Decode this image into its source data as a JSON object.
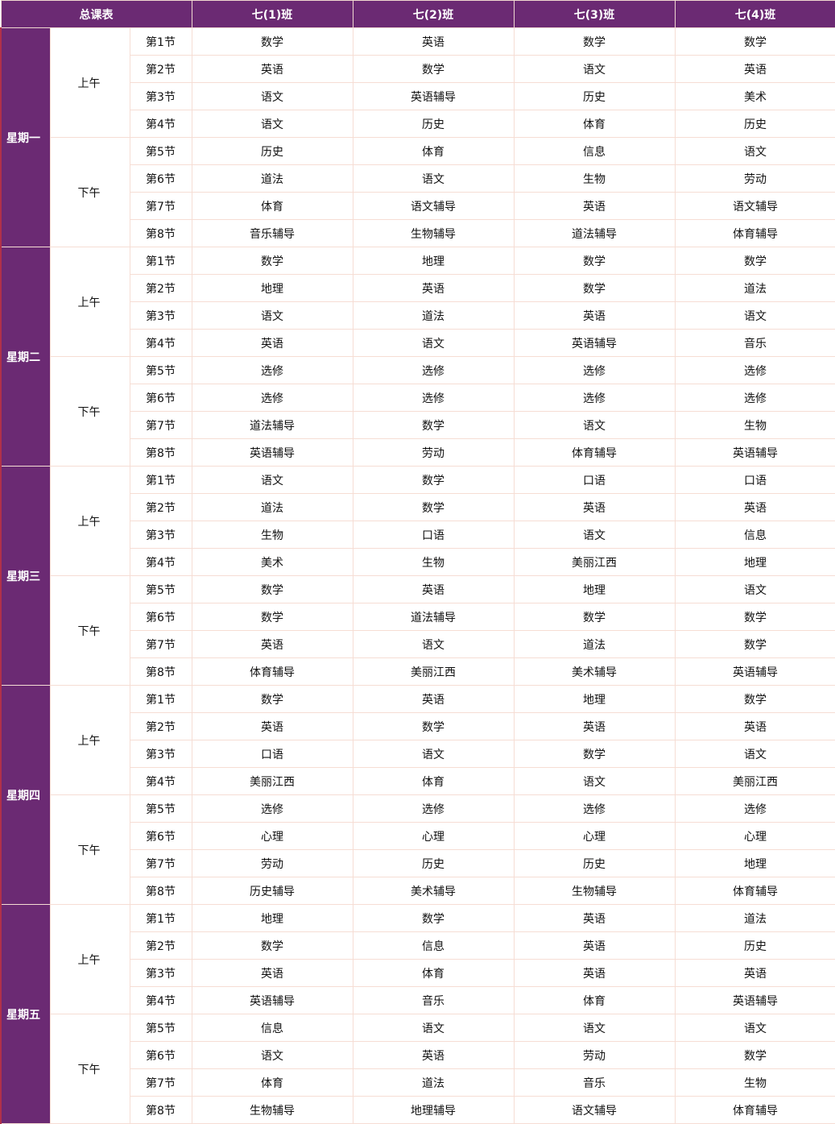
{
  "header": {
    "title": "总课表",
    "classes": [
      "七(1)班",
      "七(2)班",
      "七(3)班",
      "七(4)班"
    ]
  },
  "colors": {
    "header_bg": "#6b2a73",
    "border": "#f6ddd4"
  },
  "days": [
    {
      "name": "星期一",
      "halves": [
        {
          "label": "上午",
          "periods": [
            [
              "第1节",
              "数学",
              "英语",
              "数学",
              "数学"
            ],
            [
              "第2节",
              "英语",
              "数学",
              "语文",
              "英语"
            ],
            [
              "第3节",
              "语文",
              "英语辅导",
              "历史",
              "美术"
            ],
            [
              "第4节",
              "语文",
              "历史",
              "体育",
              "历史"
            ]
          ]
        },
        {
          "label": "下午",
          "periods": [
            [
              "第5节",
              "历史",
              "体育",
              "信息",
              "语文"
            ],
            [
              "第6节",
              "道法",
              "语文",
              "生物",
              "劳动"
            ],
            [
              "第7节",
              "体育",
              "语文辅导",
              "英语",
              "语文辅导"
            ],
            [
              "第8节",
              "音乐辅导",
              "生物辅导",
              "道法辅导",
              "体育辅导"
            ]
          ]
        }
      ]
    },
    {
      "name": "星期二",
      "halves": [
        {
          "label": "上午",
          "periods": [
            [
              "第1节",
              "数学",
              "地理",
              "数学",
              "数学"
            ],
            [
              "第2节",
              "地理",
              "英语",
              "数学",
              "道法"
            ],
            [
              "第3节",
              "语文",
              "道法",
              "英语",
              "语文"
            ],
            [
              "第4节",
              "英语",
              "语文",
              "英语辅导",
              "音乐"
            ]
          ]
        },
        {
          "label": "下午",
          "periods": [
            [
              "第5节",
              "选修",
              "选修",
              "选修",
              "选修"
            ],
            [
              "第6节",
              "选修",
              "选修",
              "选修",
              "选修"
            ],
            [
              "第7节",
              "道法辅导",
              "数学",
              "语文",
              "生物"
            ],
            [
              "第8节",
              "英语辅导",
              "劳动",
              "体育辅导",
              "英语辅导"
            ]
          ]
        }
      ]
    },
    {
      "name": "星期三",
      "halves": [
        {
          "label": "上午",
          "periods": [
            [
              "第1节",
              "语文",
              "数学",
              "口语",
              "口语"
            ],
            [
              "第2节",
              "道法",
              "数学",
              "英语",
              "英语"
            ],
            [
              "第3节",
              "生物",
              "口语",
              "语文",
              "信息"
            ],
            [
              "第4节",
              "美术",
              "生物",
              "美丽江西",
              "地理"
            ]
          ]
        },
        {
          "label": "下午",
          "periods": [
            [
              "第5节",
              "数学",
              "英语",
              "地理",
              "语文"
            ],
            [
              "第6节",
              "数学",
              "道法辅导",
              "数学",
              "数学"
            ],
            [
              "第7节",
              "英语",
              "语文",
              "道法",
              "数学"
            ],
            [
              "第8节",
              "体育辅导",
              "美丽江西",
              "美术辅导",
              "英语辅导"
            ]
          ]
        }
      ]
    },
    {
      "name": "星期四",
      "halves": [
        {
          "label": "上午",
          "periods": [
            [
              "第1节",
              "数学",
              "英语",
              "地理",
              "数学"
            ],
            [
              "第2节",
              "英语",
              "数学",
              "英语",
              "英语"
            ],
            [
              "第3节",
              "口语",
              "语文",
              "数学",
              "语文"
            ],
            [
              "第4节",
              "美丽江西",
              "体育",
              "语文",
              "美丽江西"
            ]
          ]
        },
        {
          "label": "下午",
          "periods": [
            [
              "第5节",
              "选修",
              "选修",
              "选修",
              "选修"
            ],
            [
              "第6节",
              "心理",
              "心理",
              "心理",
              "心理"
            ],
            [
              "第7节",
              "劳动",
              "历史",
              "历史",
              "地理"
            ],
            [
              "第8节",
              "历史辅导",
              "美术辅导",
              "生物辅导",
              "体育辅导"
            ]
          ]
        }
      ]
    },
    {
      "name": "星期五",
      "halves": [
        {
          "label": "上午",
          "periods": [
            [
              "第1节",
              "地理",
              "数学",
              "英语",
              "道法"
            ],
            [
              "第2节",
              "数学",
              "信息",
              "英语",
              "历史"
            ],
            [
              "第3节",
              "英语",
              "体育",
              "英语",
              "英语"
            ],
            [
              "第4节",
              "英语辅导",
              "音乐",
              "体育",
              "英语辅导"
            ]
          ]
        },
        {
          "label": "下午",
          "periods": [
            [
              "第5节",
              "信息",
              "语文",
              "语文",
              "语文"
            ],
            [
              "第6节",
              "语文",
              "英语",
              "劳动",
              "数学"
            ],
            [
              "第7节",
              "体育",
              "道法",
              "音乐",
              "生物"
            ],
            [
              "第8节",
              "生物辅导",
              "地理辅导",
              "语文辅导",
              "体育辅导"
            ]
          ]
        }
      ]
    }
  ]
}
